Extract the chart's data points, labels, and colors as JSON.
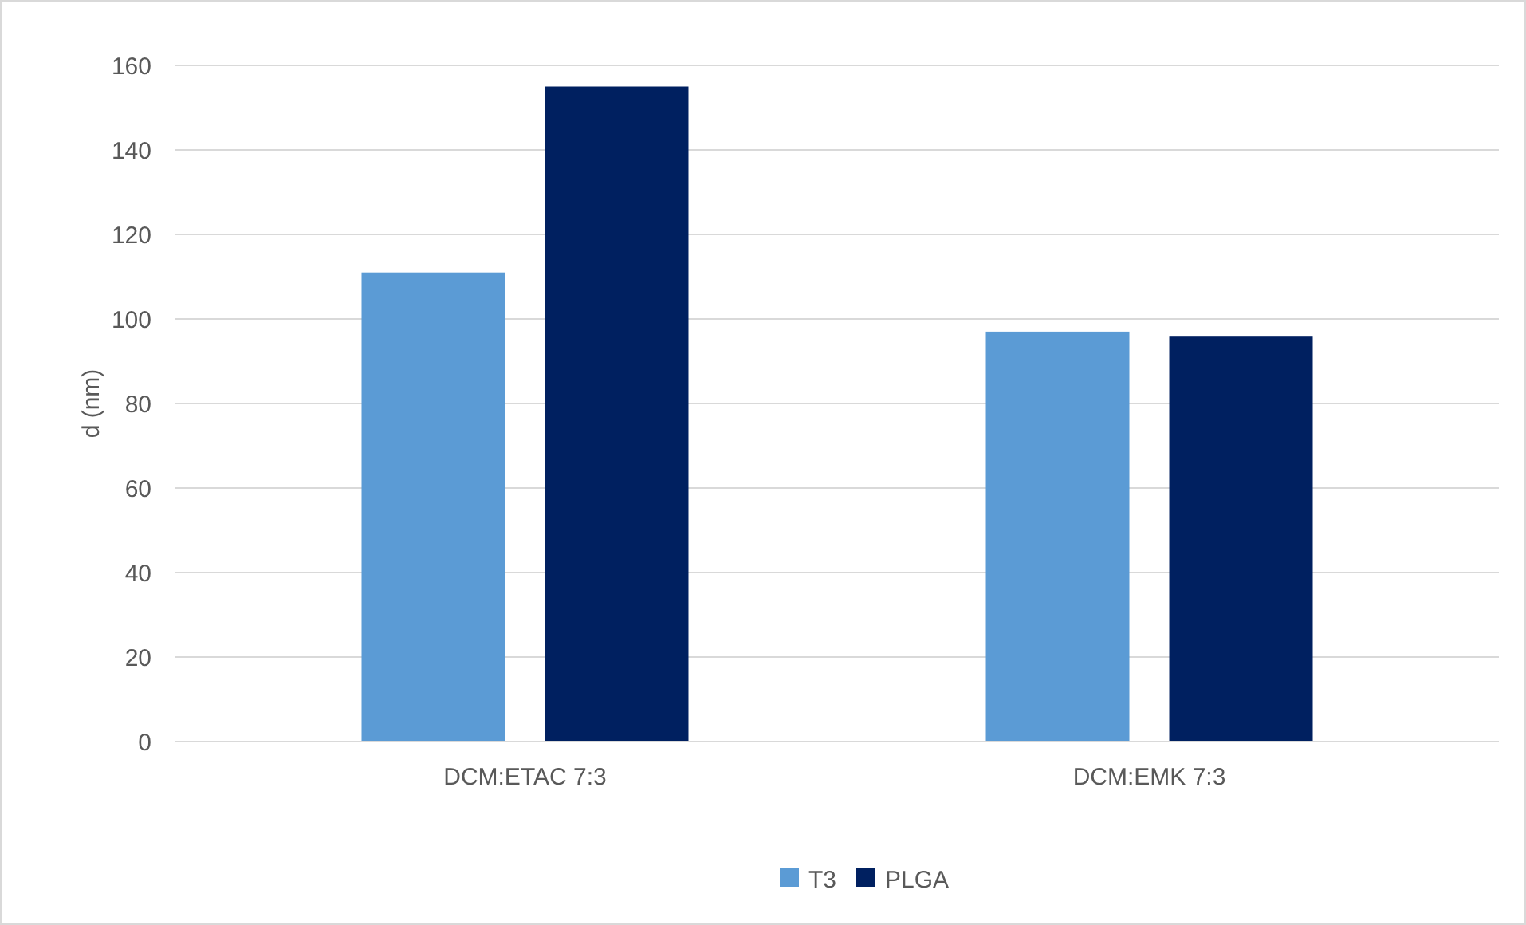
{
  "chart_data": {
    "type": "bar",
    "ylabel": "d (nm)",
    "categories": [
      "DCM:ETAC 7:3",
      "DCM:EMK 7:3"
    ],
    "series": [
      {
        "name": "T3",
        "color": "#5b9bd5",
        "values": [
          111,
          97
        ]
      },
      {
        "name": "PLGA",
        "color": "#002060",
        "values": [
          155,
          96
        ]
      }
    ],
    "ylim": [
      0,
      160
    ],
    "yticks": [
      0,
      20,
      40,
      60,
      80,
      100,
      120,
      140,
      160
    ],
    "grid": "y",
    "legend": "bottom"
  }
}
